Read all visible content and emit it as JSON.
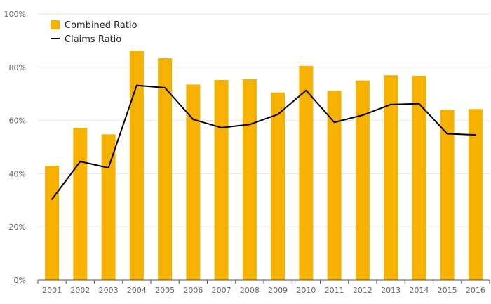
{
  "chart_data": {
    "type": "bar",
    "title": "",
    "xlabel": "",
    "ylabel": "",
    "categories": [
      "2001",
      "2002",
      "2003",
      "2004",
      "2005",
      "2006",
      "2007",
      "2008",
      "2009",
      "2010",
      "2011",
      "2012",
      "2013",
      "2014",
      "2015",
      "2016"
    ],
    "series": [
      {
        "name": "Combined Ratio",
        "type": "bar",
        "values": [
          43,
          57.2,
          54.8,
          86.2,
          83.4,
          73.5,
          75.2,
          75.5,
          70.5,
          80.5,
          71.2,
          75,
          77,
          76.8,
          64,
          64.3
        ]
      },
      {
        "name": "Claims Ratio",
        "type": "line",
        "values": [
          30.4,
          44.6,
          42.2,
          73.2,
          72.3,
          60.4,
          57.3,
          58.5,
          62.3,
          71.3,
          59.3,
          62,
          66,
          66.3,
          55,
          54.6
        ]
      }
    ],
    "ylim": [
      0,
      100
    ],
    "yticks": [
      "0%",
      "20%",
      "40%",
      "60%",
      "80%",
      "100%"
    ],
    "ytick_values": [
      0,
      20,
      40,
      60,
      80,
      100
    ],
    "grid": true,
    "legend_position": "top-left",
    "colors": {
      "bar": "#f7b100",
      "line": "#000000",
      "grid": "#e6e6e6",
      "axis": "#555555",
      "tick_text": "#666666"
    }
  }
}
